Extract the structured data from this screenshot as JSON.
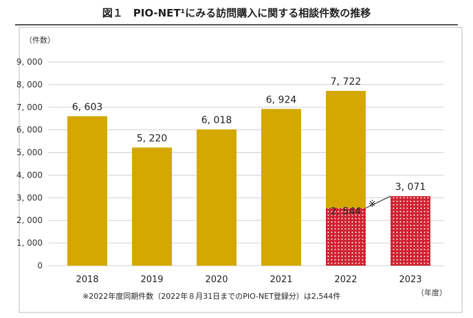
{
  "chart_data": {
    "type": "bar",
    "title": "図１　PIO-NET¹にみる訪問購入に関する相談件数の推移",
    "ylabel": "（件数）",
    "xlabel": "（年度）",
    "categories": [
      "2018",
      "2019",
      "2020",
      "2021",
      "2022",
      "2023"
    ],
    "series": [
      {
        "values": [
          6603,
          5220,
          6018,
          6924,
          7722,
          null
        ],
        "color": "#d4a800",
        "labels": [
          "6, 603",
          "5, 220",
          "6, 018",
          "6, 924",
          "7, 722",
          ""
        ]
      },
      {
        "values": [
          null,
          null,
          null,
          null,
          2544,
          3071
        ],
        "color": "#d0202a",
        "pattern": "white-dots",
        "labels": [
          "",
          "",
          "",
          "",
          "2, 544",
          "3, 071"
        ]
      }
    ],
    "yticks": [
      "0",
      "1, 000",
      "2, 000",
      "3, 000",
      "4, 000",
      "5, 000",
      "6, 000",
      "7, 000",
      "8, 000",
      "9, 000"
    ],
    "ylim": [
      0,
      9000
    ],
    "grid": true,
    "annotation_mark": "※",
    "footnote": "※2022年度同期件数（2022年８月31日までのPIO-NET登録分）は2,544件"
  }
}
